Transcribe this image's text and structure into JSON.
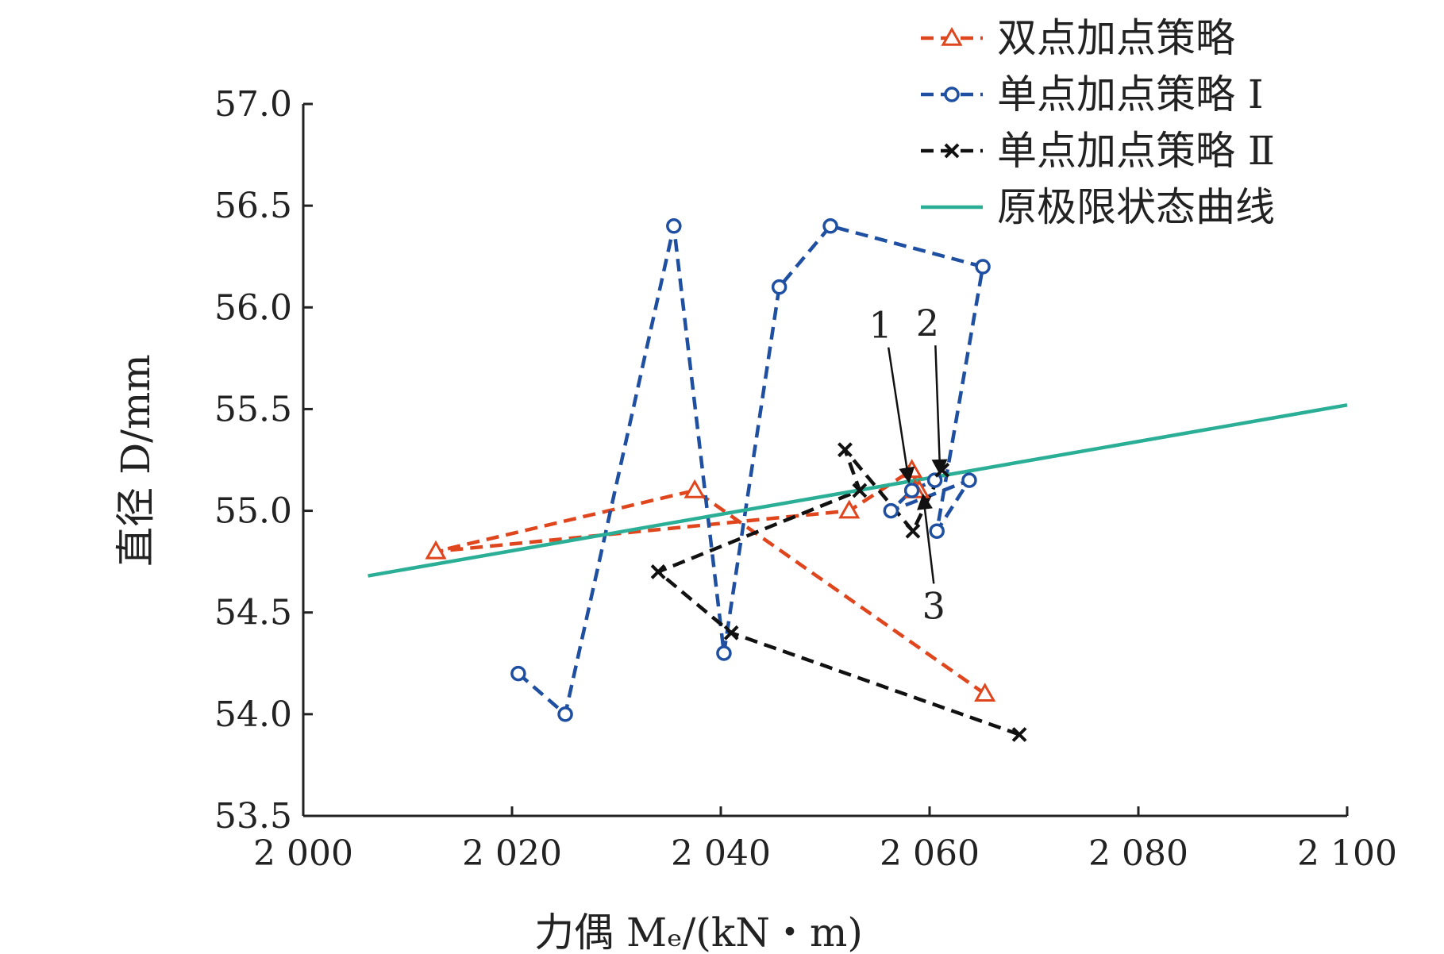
{
  "chart_data": {
    "type": "line",
    "xlabel": "力偶 Mₑ/(kN・m)",
    "ylabel": "直径 D/mm",
    "xlim": [
      2000,
      2100
    ],
    "ylim": [
      53.5,
      57.0
    ],
    "x_ticks": [
      2000,
      2020,
      2040,
      2060,
      2080,
      2100
    ],
    "x_tick_labels": [
      "2 000",
      "2 020",
      "2 040",
      "2 060",
      "2 080",
      "2 100"
    ],
    "y_ticks": [
      53.5,
      54.0,
      54.5,
      55.0,
      55.5,
      56.0,
      56.5,
      57.0
    ],
    "y_tick_labels": [
      "53.5",
      "54.0",
      "54.5",
      "55.0",
      "55.5",
      "56.0",
      "56.5",
      "57.0"
    ],
    "legend_position": "top-right",
    "series": [
      {
        "name": "双点加点策略",
        "color": "#e0461e",
        "marker": "triangle",
        "dashed": true,
        "points": [
          [
            2065.3,
            54.1
          ],
          [
            2037.5,
            55.1
          ],
          [
            2012.7,
            54.8
          ],
          [
            2052.3,
            55.0
          ],
          [
            2058.3,
            55.2
          ],
          [
            2059.0,
            55.1
          ],
          [
            2058.6,
            55.1
          ]
        ]
      },
      {
        "name": "单点加点策略 Ⅰ",
        "color": "#1f4fa0",
        "marker": "circle",
        "dashed": true,
        "points": [
          [
            2020.6,
            54.2
          ],
          [
            2025.1,
            54.0
          ],
          [
            2035.5,
            56.4
          ],
          [
            2040.3,
            54.3
          ],
          [
            2045.6,
            56.1
          ],
          [
            2050.5,
            56.4
          ],
          [
            2065.1,
            56.2
          ],
          [
            2060.7,
            54.9
          ],
          [
            2063.8,
            55.15
          ],
          [
            2056.3,
            55.0
          ],
          [
            2058.3,
            55.1
          ],
          [
            2060.5,
            55.15
          ]
        ]
      },
      {
        "name": "单点加点策略 Ⅱ",
        "color": "#111111",
        "marker": "x",
        "dashed": true,
        "points": [
          [
            2068.6,
            53.9
          ],
          [
            2041.0,
            54.4
          ],
          [
            2034.0,
            54.7
          ],
          [
            2053.3,
            55.1
          ],
          [
            2051.9,
            55.3
          ],
          [
            2058.4,
            54.9
          ],
          [
            2061.2,
            55.2
          ]
        ]
      },
      {
        "name": "原极限状态曲线",
        "color": "#2aae95",
        "marker": "none",
        "dashed": false,
        "points": [
          [
            2006.2,
            54.68
          ],
          [
            2100.0,
            55.52
          ]
        ]
      }
    ],
    "annotations": [
      {
        "label": "1",
        "text_at": [
          2055.3,
          55.85
        ],
        "arrow_to": [
          2058.0,
          55.15
        ]
      },
      {
        "label": "2",
        "text_at": [
          2059.8,
          55.86
        ],
        "arrow_to": [
          2061.0,
          55.19
        ]
      },
      {
        "label": "3",
        "text_at": [
          2060.4,
          54.47
        ],
        "arrow_to": [
          2059.4,
          55.07
        ]
      }
    ]
  }
}
